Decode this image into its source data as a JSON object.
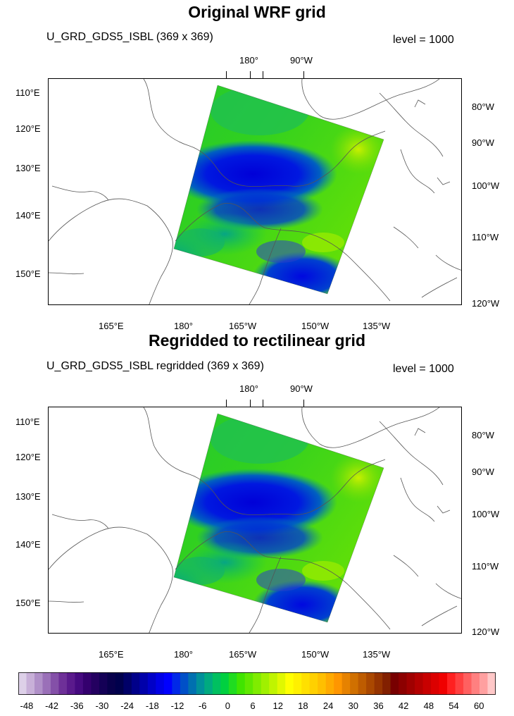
{
  "panels": [
    {
      "title": "Original WRF grid",
      "left_string": "U_GRD_GDS5_ISBL (369 x 369)",
      "right_string": "level = 1000",
      "top_ticks": [
        "180°",
        "90°W"
      ],
      "left_ticks": [
        "110°E",
        "120°E",
        "130°E",
        "140°E",
        "150°E"
      ],
      "right_ticks": [
        "80°W",
        "90°W",
        "100°W",
        "110°W",
        "120°W"
      ],
      "bottom_ticks": [
        "165°E",
        "180°",
        "165°W",
        "150°W",
        "135°W"
      ]
    },
    {
      "title": "Regridded to rectilinear grid",
      "left_string": "U_GRD_GDS5_ISBL regridded (369 x 369)",
      "right_string": "level = 1000",
      "top_ticks": [
        "180°",
        "90°W"
      ],
      "left_ticks": [
        "110°E",
        "120°E",
        "130°E",
        "140°E",
        "150°E"
      ],
      "right_ticks": [
        "80°W",
        "90°W",
        "100°W",
        "110°W",
        "120°W"
      ],
      "bottom_ticks": [
        "165°E",
        "180°",
        "165°W",
        "150°W",
        "135°W"
      ]
    }
  ],
  "colorbar": {
    "labels": [
      "-48",
      "-42",
      "-36",
      "-30",
      "-24",
      "-18",
      "-12",
      "-6",
      "0",
      "6",
      "12",
      "18",
      "24",
      "30",
      "36",
      "42",
      "48",
      "54",
      "60"
    ],
    "min": -50,
    "max": 64,
    "colors": [
      "#ddd0e8",
      "#c8b0d8",
      "#b090c8",
      "#9a70b8",
      "#8450a8",
      "#6e3098",
      "#5a1a8c",
      "#460a80",
      "#34006e",
      "#240060",
      "#140056",
      "#08004c",
      "#00004c",
      "#000068",
      "#00008a",
      "#0000aa",
      "#0000c8",
      "#0000e6",
      "#0000ff",
      "#0028e8",
      "#0050c8",
      "#0070b0",
      "#00909a",
      "#00aa80",
      "#00c060",
      "#00d040",
      "#20dc20",
      "#40e400",
      "#60e800",
      "#80ec00",
      "#a0f000",
      "#c0f400",
      "#e0f800",
      "#ffff00",
      "#fff000",
      "#ffe000",
      "#ffd000",
      "#ffbf00",
      "#ffaa00",
      "#ff9600",
      "#e68200",
      "#d07000",
      "#be5c00",
      "#aa4800",
      "#963400",
      "#822000",
      "#780000",
      "#8c0000",
      "#a00000",
      "#b40000",
      "#c80000",
      "#dc0000",
      "#f00000",
      "#ff2020",
      "#ff4040",
      "#ff6060",
      "#ff8080",
      "#ffa0a0",
      "#ffc8c8"
    ]
  }
}
